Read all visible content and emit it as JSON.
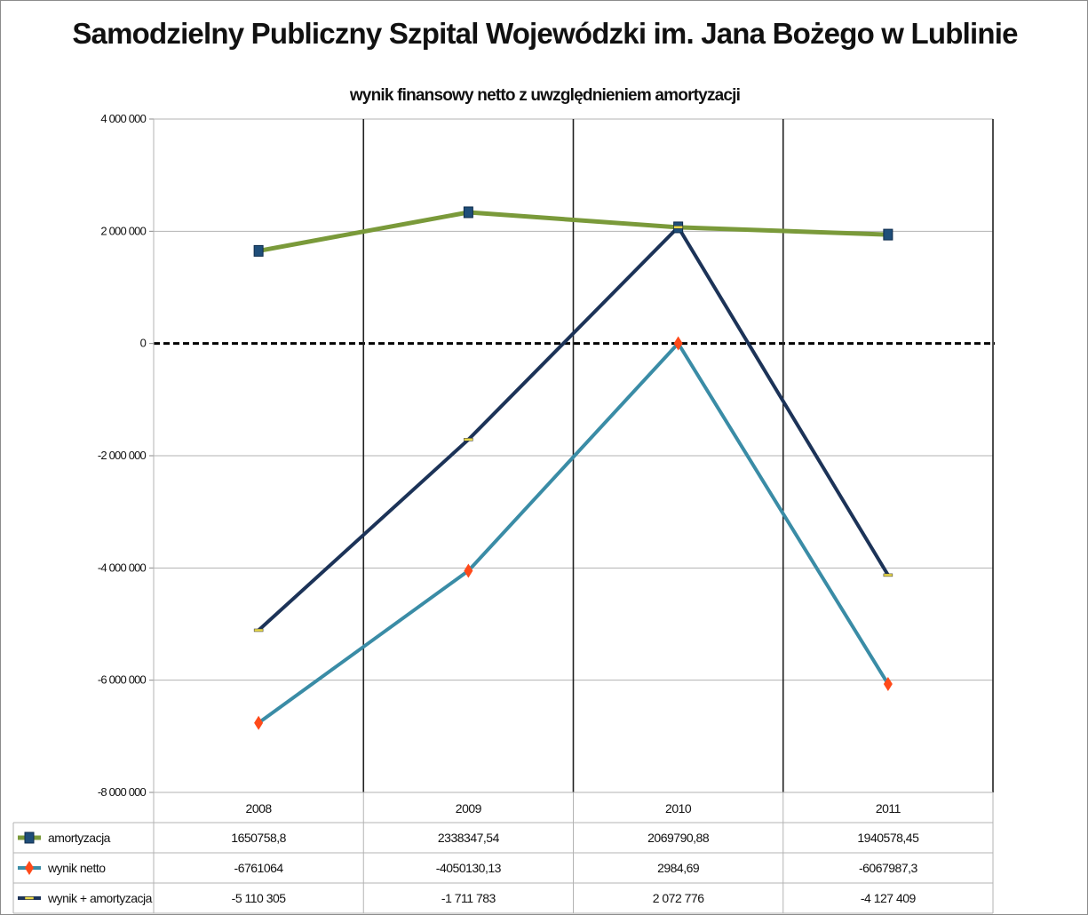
{
  "title": "Samodzielny Publiczny Szpital Wojewódzki im. Jana Bożego w Lublinie",
  "chart_data": {
    "type": "line",
    "title": "wynik finansowy netto z uwzględnieniem amortyzacji",
    "categories": [
      "2008",
      "2009",
      "2010",
      "2011"
    ],
    "ylim": [
      -8000000,
      4000000
    ],
    "yticks": [
      {
        "value": 4000000,
        "label": "4 000 000"
      },
      {
        "value": 2000000,
        "label": "2 000 000"
      },
      {
        "value": 0,
        "label": "0"
      },
      {
        "value": -2000000,
        "label": "-2 000 000"
      },
      {
        "value": -4000000,
        "label": "-4 000 000"
      },
      {
        "value": -6000000,
        "label": "-6 000 000"
      },
      {
        "value": -8000000,
        "label": "-8 000 000"
      }
    ],
    "grid": true,
    "zero_line": "dashed",
    "legend": "data-table-below",
    "series": [
      {
        "name": "amortyzacja",
        "values": [
          1650758.8,
          2338347.54,
          2069790.88,
          1940578.45
        ],
        "table_values": [
          "1650758,8",
          "2338347,54",
          "2069790,88",
          "1940578,45"
        ],
        "color": "#7a9a3a",
        "marker": "square",
        "marker_color": "#1f4e79"
      },
      {
        "name": "wynik netto",
        "values": [
          -6761064,
          -4050130.13,
          2984.69,
          -6067987.3
        ],
        "table_values": [
          "-6761064",
          "-4050130,13",
          "2984,69",
          "-6067987,3"
        ],
        "color": "#3a8ca6",
        "marker": "diamond",
        "marker_color": "#ff4a1a"
      },
      {
        "name": "wynik + amortyzacja",
        "values": [
          -5110305,
          -1711783,
          2072776,
          -4127409
        ],
        "table_values": [
          "-5 110 305",
          "-1 711 783",
          "2 072 776",
          "-4 127 409"
        ],
        "color": "#1c3358",
        "marker": "dash",
        "marker_color": "#e8d84a"
      }
    ]
  }
}
